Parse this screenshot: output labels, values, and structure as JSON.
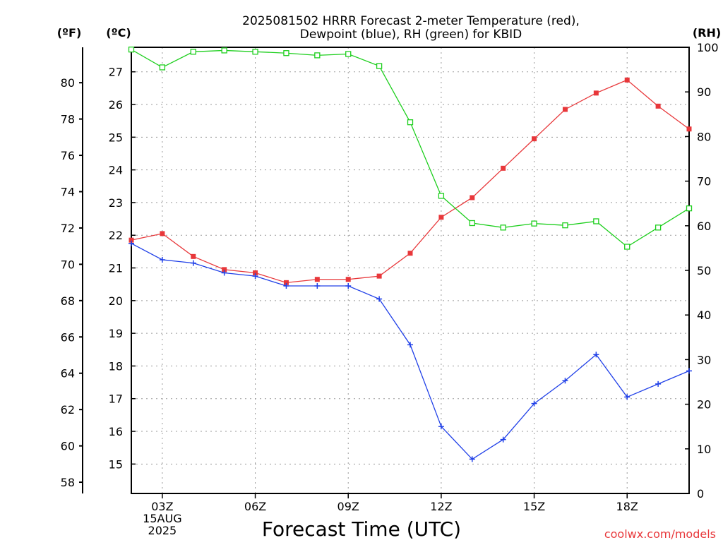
{
  "title": {
    "line1": "2025081502 HRRR Forecast 2-meter Temperature (red),",
    "line2": "Dewpoint (blue), RH (green) for KBID"
  },
  "credit": "coolwx.com/models",
  "colors": {
    "temperature": "#e8373a",
    "dewpoint": "#2040e8",
    "rh": "#1ecf1e",
    "grid": "#9a9a9a",
    "axis": "#000000"
  },
  "chart_data": {
    "type": "line",
    "title": "2025081502 HRRR Forecast 2-meter Temperature (red), Dewpoint (blue), RH (green) for KBID",
    "xlabel": "Forecast Time (UTC)",
    "x_unit": "hour UTC, 15 Aug 2025",
    "x": [
      2,
      3,
      4,
      5,
      6,
      7,
      8,
      9,
      10,
      11,
      12,
      13,
      14,
      15,
      16,
      17,
      18,
      19,
      20
    ],
    "xlim": [
      2,
      20
    ],
    "x_ticks": [
      {
        "x": 3,
        "lines": [
          "03Z",
          "15AUG",
          "2025"
        ]
      },
      {
        "x": 6,
        "lines": [
          "06Z"
        ]
      },
      {
        "x": 9,
        "lines": [
          "09Z"
        ]
      },
      {
        "x": 12,
        "lines": [
          "12Z"
        ]
      },
      {
        "x": 15,
        "lines": [
          "15Z"
        ]
      },
      {
        "x": 18,
        "lines": [
          "18Z"
        ]
      }
    ],
    "left_axis_c": {
      "label": "(ºC)",
      "ticks": [
        15,
        16,
        17,
        18,
        19,
        20,
        21,
        22,
        23,
        24,
        25,
        26,
        27
      ],
      "range": [
        14.1,
        27.75
      ]
    },
    "left_axis_f": {
      "label": "(ºF)",
      "ticks": [
        58,
        60,
        62,
        64,
        66,
        68,
        70,
        72,
        74,
        76,
        78,
        80
      ]
    },
    "right_axis": {
      "label": "(RH)",
      "ticks": [
        0,
        10,
        20,
        30,
        40,
        50,
        60,
        70,
        80,
        90,
        100
      ],
      "range": [
        0,
        100
      ]
    },
    "grid": true,
    "series": [
      {
        "name": "Temperature",
        "axis": "C",
        "marker": "filled-square",
        "color": "#e8373a",
        "values": [
          21.85,
          22.05,
          21.35,
          20.95,
          20.85,
          20.55,
          20.65,
          20.65,
          20.75,
          21.45,
          22.55,
          23.15,
          24.05,
          24.95,
          25.85,
          26.35,
          26.75,
          25.95,
          25.25
        ]
      },
      {
        "name": "Dewpoint",
        "axis": "C",
        "marker": "plus",
        "color": "#2040e8",
        "values": [
          21.75,
          21.25,
          21.15,
          20.85,
          20.75,
          20.45,
          20.45,
          20.45,
          20.05,
          18.65,
          16.15,
          15.15,
          15.75,
          16.85,
          17.55,
          18.35,
          17.05,
          17.45,
          17.85
        ]
      },
      {
        "name": "RH",
        "axis": "RH",
        "marker": "open-square",
        "color": "#1ecf1e",
        "values": [
          99.5,
          95.5,
          99.0,
          99.3,
          99.0,
          98.7,
          98.2,
          98.5,
          95.8,
          83.2,
          66.7,
          60.6,
          59.6,
          60.5,
          60.1,
          61.0,
          55.3,
          59.6,
          63.9
        ]
      }
    ]
  }
}
